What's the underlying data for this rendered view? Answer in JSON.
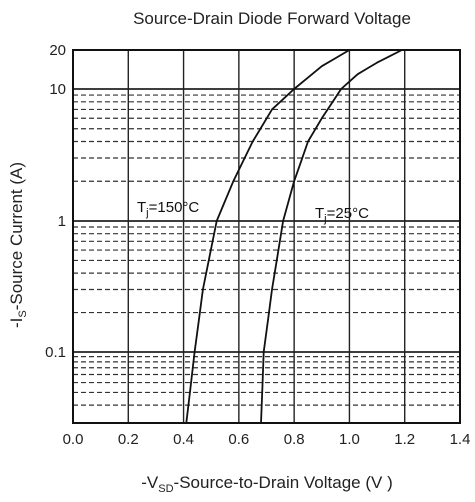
{
  "chart_data": {
    "type": "line",
    "title": "Source-Drain Diode Forward Voltage",
    "xlabel": "-V_SD-Source-to-Drain Voltage (V )",
    "ylabel": "-I_S-Source Current (A)",
    "x_scale": "linear",
    "y_scale": "log",
    "xlim": [
      0.0,
      1.4
    ],
    "ylim": [
      0.02,
      20
    ],
    "x_ticks": [
      "0.0",
      "0.2",
      "0.4",
      "0.6",
      "0.8",
      "1.0",
      "1.2",
      "1.4"
    ],
    "y_ticks": [
      "0.1",
      "1",
      "10",
      "20"
    ],
    "grid": true,
    "series": [
      {
        "name": "Tj=150°C",
        "x": [
          0.41,
          0.44,
          0.47,
          0.52,
          0.58,
          0.65,
          0.72,
          0.8,
          0.9,
          1.0
        ],
        "y": [
          0.02,
          0.1,
          0.3,
          1.0,
          2.0,
          4.0,
          7.0,
          10.0,
          15.0,
          20.0
        ]
      },
      {
        "name": "Tj=25°C",
        "x": [
          0.68,
          0.69,
          0.72,
          0.76,
          0.8,
          0.85,
          0.9,
          0.97,
          1.03,
          1.1,
          1.19
        ],
        "y": [
          0.02,
          0.1,
          0.3,
          1.0,
          2.0,
          4.0,
          6.0,
          10.0,
          13.0,
          16.0,
          20.0
        ]
      }
    ],
    "annotations": [
      {
        "base": "T",
        "sub": "j",
        "rest": "=150°C"
      },
      {
        "base": "T",
        "sub": "j",
        "rest": "=25°C"
      }
    ]
  }
}
